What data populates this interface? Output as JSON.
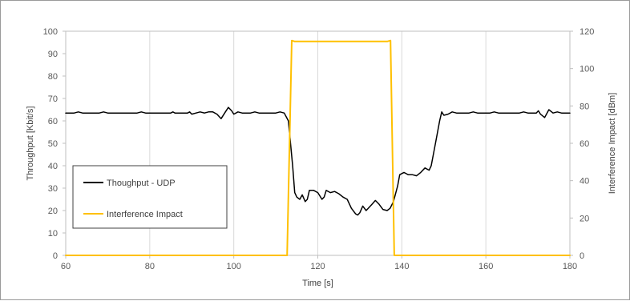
{
  "chart_data": {
    "type": "line",
    "xlabel": "Time [s]",
    "ylabel": "Throughput [Kbit/s]",
    "y2label": "Interference Impact [dBm]",
    "xlim": [
      60,
      180
    ],
    "ylim": [
      0,
      100
    ],
    "y2lim": [
      0,
      120
    ],
    "x_ticks": [
      60,
      80,
      100,
      120,
      140,
      160,
      180
    ],
    "y_ticks": [
      0,
      10,
      20,
      30,
      40,
      50,
      60,
      70,
      80,
      90,
      100
    ],
    "y2_ticks": [
      0,
      20,
      40,
      60,
      80,
      100,
      120
    ],
    "grid": "vertical",
    "legend_position": "middle-left",
    "series": [
      {
        "name": "Thoughput - UDP",
        "axis": "left",
        "color": "#000000",
        "points": [
          [
            60,
            63.5
          ],
          [
            62,
            63.5
          ],
          [
            63,
            64
          ],
          [
            64,
            63.5
          ],
          [
            68,
            63.5
          ],
          [
            69,
            64
          ],
          [
            70,
            63.5
          ],
          [
            77,
            63.5
          ],
          [
            78,
            64
          ],
          [
            79,
            63.5
          ],
          [
            85,
            63.5
          ],
          [
            85.5,
            64
          ],
          [
            86,
            63.5
          ],
          [
            89,
            63.5
          ],
          [
            89.5,
            64
          ],
          [
            90,
            63
          ],
          [
            91,
            63.5
          ],
          [
            92,
            64
          ],
          [
            93,
            63.5
          ],
          [
            94,
            64
          ],
          [
            95,
            64
          ],
          [
            96,
            63
          ],
          [
            97,
            61
          ],
          [
            98,
            64
          ],
          [
            98.7,
            66
          ],
          [
            99.5,
            64.5
          ],
          [
            100,
            63
          ],
          [
            101,
            64
          ],
          [
            102,
            63.5
          ],
          [
            104,
            63.5
          ],
          [
            105,
            64
          ],
          [
            106,
            63.5
          ],
          [
            110,
            63.5
          ],
          [
            111,
            64
          ],
          [
            112,
            63.5
          ],
          [
            113,
            60
          ],
          [
            114,
            40
          ],
          [
            114.5,
            28
          ],
          [
            115,
            26
          ],
          [
            115.7,
            25
          ],
          [
            116.3,
            27
          ],
          [
            117,
            24
          ],
          [
            117.5,
            25
          ],
          [
            118,
            29
          ],
          [
            119,
            29
          ],
          [
            120,
            28
          ],
          [
            121,
            25
          ],
          [
            121.5,
            26
          ],
          [
            122,
            29
          ],
          [
            123,
            28
          ],
          [
            124,
            28.5
          ],
          [
            125,
            27.5
          ],
          [
            126,
            26
          ],
          [
            127,
            25
          ],
          [
            128,
            21
          ],
          [
            129,
            18.5
          ],
          [
            129.5,
            18
          ],
          [
            130,
            19
          ],
          [
            130.7,
            22
          ],
          [
            131.5,
            20
          ],
          [
            132,
            21
          ],
          [
            133,
            23
          ],
          [
            133.7,
            24.5
          ],
          [
            134.5,
            23
          ],
          [
            135.5,
            20.5
          ],
          [
            136.5,
            20
          ],
          [
            137.2,
            21
          ],
          [
            138,
            24
          ],
          [
            139,
            31
          ],
          [
            139.5,
            36
          ],
          [
            140.5,
            37
          ],
          [
            141.5,
            36
          ],
          [
            142.5,
            36
          ],
          [
            143.5,
            35.5
          ],
          [
            144.5,
            37
          ],
          [
            145.5,
            39
          ],
          [
            146.5,
            38
          ],
          [
            147,
            40
          ],
          [
            148,
            50
          ],
          [
            149,
            60
          ],
          [
            149.5,
            64
          ],
          [
            150,
            62.5
          ],
          [
            151,
            63
          ],
          [
            152,
            64
          ],
          [
            153,
            63.5
          ],
          [
            156,
            63.5
          ],
          [
            157,
            64
          ],
          [
            158,
            63.5
          ],
          [
            161,
            63.5
          ],
          [
            162,
            64
          ],
          [
            163,
            63.5
          ],
          [
            168,
            63.5
          ],
          [
            169,
            64
          ],
          [
            170,
            63.5
          ],
          [
            172,
            63.5
          ],
          [
            172.5,
            64.5
          ],
          [
            173,
            63
          ],
          [
            174,
            61.5
          ],
          [
            175,
            65
          ],
          [
            176,
            63.5
          ],
          [
            177,
            64
          ],
          [
            178,
            63.5
          ],
          [
            180,
            63.5
          ]
        ]
      },
      {
        "name": "Interference Impact",
        "axis": "right",
        "color": "#ffc000",
        "points": [
          [
            60,
            0
          ],
          [
            112.7,
            0
          ],
          [
            113.8,
            115
          ],
          [
            114.5,
            114.5
          ],
          [
            136.5,
            114.5
          ],
          [
            137.3,
            115
          ],
          [
            138.2,
            0
          ],
          [
            180,
            0
          ]
        ]
      }
    ]
  }
}
